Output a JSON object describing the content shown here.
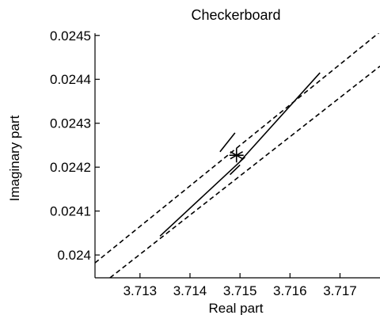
{
  "chart_data": {
    "type": "line",
    "title": "Checkerboard",
    "xlabel": "Real part",
    "ylabel": "Imaginary part",
    "xlim": [
      3.7121,
      3.7178
    ],
    "ylim": [
      0.023948,
      0.024505
    ],
    "xticks": [
      3.713,
      3.714,
      3.715,
      3.716,
      3.717
    ],
    "xtick_labels": [
      "3.713",
      "3.714",
      "3.715",
      "3.716",
      "3.717"
    ],
    "yticks": [
      0.024,
      0.0241,
      0.0242,
      0.0243,
      0.0244,
      0.0245
    ],
    "ytick_labels": [
      "0.024",
      "0.0241",
      "0.0242",
      "0.0243",
      "0.0244",
      "0.0245"
    ],
    "grid": false,
    "series": [
      {
        "style": "dashed",
        "points": [
          [
            3.7121,
            0.023982
          ],
          [
            3.7178,
            0.024508
          ]
        ]
      },
      {
        "style": "dashed",
        "points": [
          [
            3.7124,
            0.023948
          ],
          [
            3.7178,
            0.02443
          ]
        ]
      },
      {
        "style": "solid",
        "points": [
          [
            3.7134,
            0.024043
          ],
          [
            3.7151,
            0.024223
          ]
        ]
      },
      {
        "style": "solid",
        "points": [
          [
            3.7146,
            0.024235
          ],
          [
            3.7149,
            0.024278
          ]
        ]
      },
      {
        "style": "solid",
        "points": [
          [
            3.715,
            0.024213
          ],
          [
            3.7166,
            0.024415
          ]
        ]
      },
      {
        "style": "solid",
        "points": [
          [
            3.7148,
            0.024183
          ],
          [
            3.715,
            0.024205
          ]
        ]
      },
      {
        "style": "marker",
        "marker": "asterisk",
        "points": [
          [
            3.71493,
            0.024227
          ]
        ]
      }
    ]
  }
}
